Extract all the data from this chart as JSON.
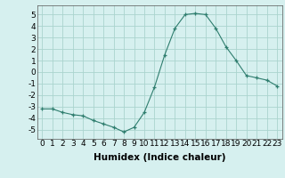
{
  "x": [
    0,
    1,
    2,
    3,
    4,
    5,
    6,
    7,
    8,
    9,
    10,
    11,
    12,
    13,
    14,
    15,
    16,
    17,
    18,
    19,
    20,
    21,
    22,
    23
  ],
  "y": [
    -3.2,
    -3.2,
    -3.5,
    -3.7,
    -3.8,
    -4.2,
    -4.5,
    -4.8,
    -5.2,
    -4.8,
    -3.5,
    -1.3,
    1.5,
    3.8,
    5.0,
    5.1,
    5.0,
    3.8,
    2.2,
    1.0,
    -0.3,
    -0.5,
    -0.7,
    -1.2
  ],
  "xlabel": "Humidex (Indice chaleur)",
  "ylim": [
    -5.8,
    5.8
  ],
  "xlim": [
    -0.5,
    23.5
  ],
  "yticks": [
    -5,
    -4,
    -3,
    -2,
    -1,
    0,
    1,
    2,
    3,
    4,
    5
  ],
  "xticks": [
    0,
    1,
    2,
    3,
    4,
    5,
    6,
    7,
    8,
    9,
    10,
    11,
    12,
    13,
    14,
    15,
    16,
    17,
    18,
    19,
    20,
    21,
    22,
    23
  ],
  "line_color": "#2e7d6e",
  "marker_color": "#2e7d6e",
  "bg_color": "#d6f0ef",
  "grid_color": "#aad4ce",
  "xlabel_fontsize": 7.5,
  "tick_fontsize": 6.5
}
